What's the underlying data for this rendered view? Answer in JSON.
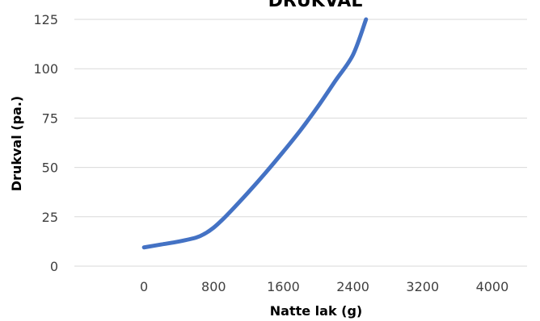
{
  "chart_data": {
    "type": "line",
    "title": "DRUKVAL",
    "xlabel": "Natte lak (g)",
    "ylabel": "Drukval (pa.)",
    "xlim": [
      -800,
      4400
    ],
    "ylim": [
      0,
      125
    ],
    "xticks": [
      0,
      800,
      1600,
      2400,
      3200,
      4000
    ],
    "xtick_labels": [
      "0",
      "800",
      "1600",
      "2400",
      "3200",
      "4000"
    ],
    "yticks": [
      0,
      25,
      50,
      75,
      100,
      125
    ],
    "ytick_labels": [
      "0",
      "25",
      "50",
      "75",
      "100",
      "125"
    ],
    "grid": "horizontal",
    "series": [
      {
        "color": "#4472C4",
        "x": [
          0,
          200,
          400,
          600,
          700,
          800,
          900,
          1000,
          1200,
          1400,
          1600,
          1800,
          2000,
          2200,
          2400,
          2550
        ],
        "y": [
          9.5,
          11,
          12.5,
          14.5,
          16.5,
          19.5,
          23.5,
          28,
          37.5,
          47.5,
          58,
          69,
          81,
          94,
          107,
          125
        ]
      }
    ]
  }
}
